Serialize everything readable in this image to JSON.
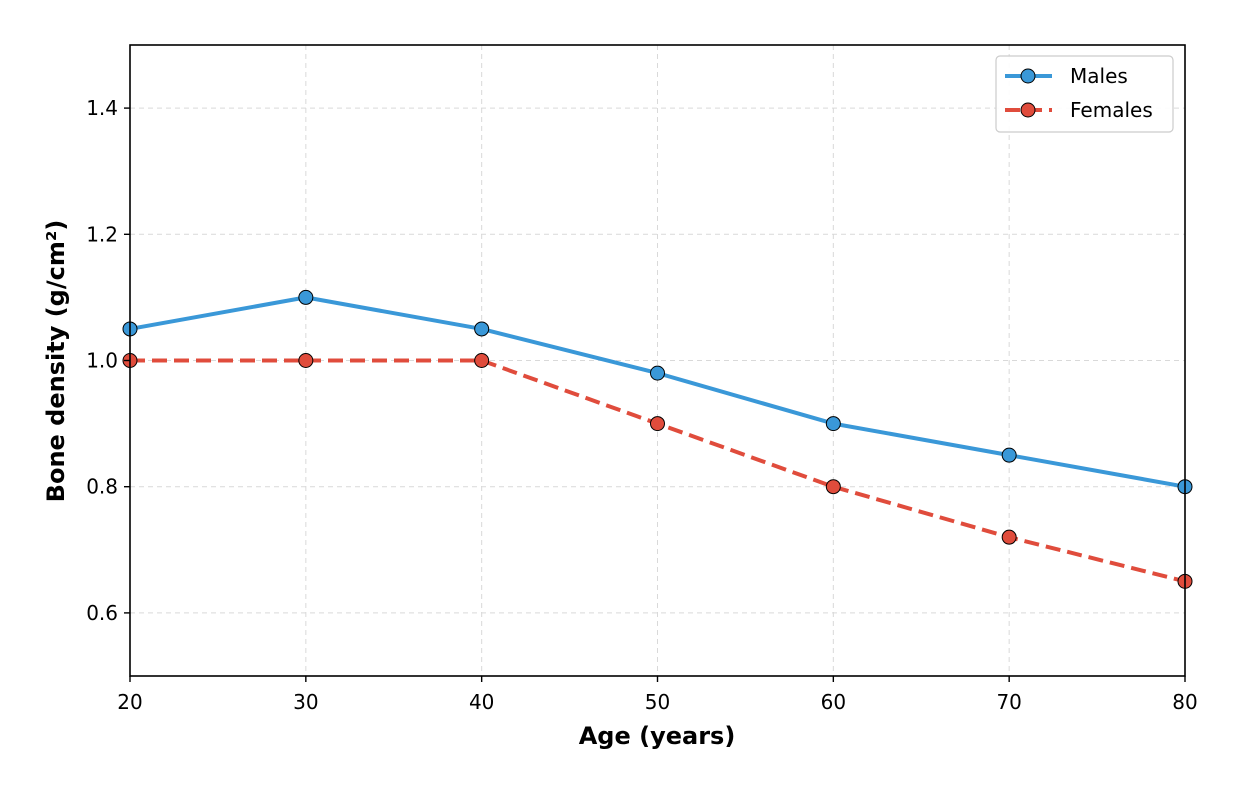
{
  "chart_data": {
    "type": "line",
    "title": "",
    "xlabel": "Age (years)",
    "ylabel": "Bone density (g/cm²)",
    "xlim": [
      20,
      80
    ],
    "ylim": [
      0.5,
      1.5
    ],
    "xticks": [
      20,
      30,
      40,
      50,
      60,
      70,
      80
    ],
    "yticks": [
      0.6,
      0.8,
      1.0,
      1.2,
      1.4
    ],
    "xtick_labels": [
      "20",
      "30",
      "40",
      "50",
      "60",
      "70",
      "80"
    ],
    "ytick_labels": [
      "0.6",
      "0.8",
      "1.0",
      "1.2",
      "1.4"
    ],
    "grid": true,
    "legend_position": "top-right",
    "x": [
      20,
      30,
      40,
      50,
      60,
      70,
      80
    ],
    "series": [
      {
        "name": "Males",
        "values": [
          1.05,
          1.1,
          1.05,
          0.98,
          0.9,
          0.85,
          0.8
        ],
        "color": "#3a98d8",
        "line_style": "solid",
        "marker": "circle"
      },
      {
        "name": "Females",
        "values": [
          1.0,
          1.0,
          1.0,
          0.9,
          0.8,
          0.72,
          0.65
        ],
        "color": "#e04c3c",
        "line_style": "dashed",
        "marker": "circle"
      }
    ]
  }
}
